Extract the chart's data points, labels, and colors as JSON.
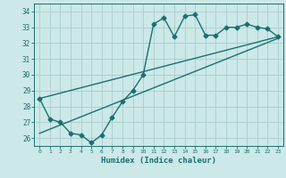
{
  "title": "",
  "xlabel": "Humidex (Indice chaleur)",
  "ylabel": "",
  "bg_color": "#cce8e8",
  "grid_color": "#aacccc",
  "line_color": "#1a7070",
  "xlim": [
    -0.5,
    23.5
  ],
  "ylim": [
    25.5,
    34.5
  ],
  "xticks": [
    0,
    1,
    2,
    3,
    4,
    5,
    6,
    7,
    8,
    9,
    10,
    11,
    12,
    13,
    14,
    15,
    16,
    17,
    18,
    19,
    20,
    21,
    22,
    23
  ],
  "yticks": [
    26,
    27,
    28,
    29,
    30,
    31,
    32,
    33,
    34
  ],
  "zigzag_x": [
    0,
    1,
    2,
    3,
    4,
    5,
    6,
    7,
    8,
    9,
    10,
    11,
    12,
    13,
    14,
    15,
    16,
    17,
    18,
    19,
    20,
    21,
    22,
    23
  ],
  "zigzag_y": [
    28.5,
    27.2,
    27.0,
    26.3,
    26.2,
    25.7,
    26.2,
    27.3,
    28.3,
    29.0,
    30.0,
    33.2,
    33.6,
    32.4,
    33.7,
    33.8,
    32.5,
    32.5,
    33.0,
    33.0,
    33.2,
    33.0,
    32.9,
    32.4
  ],
  "upper_line_x": [
    0,
    23
  ],
  "upper_line_y": [
    28.5,
    32.4
  ],
  "lower_line_x": [
    0,
    23
  ],
  "lower_line_y": [
    26.3,
    32.3
  ],
  "marker_size": 2.5,
  "linewidth": 1.0
}
